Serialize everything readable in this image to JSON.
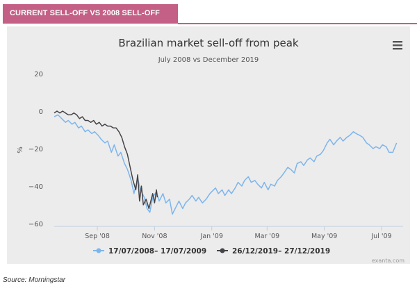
{
  "banner": {
    "title": "CURRENT SELL-OFF VS 2008 SELL-OFF",
    "color": "#c45f85"
  },
  "source": "Source: Morningstar",
  "menu_icon": "hamburger-menu-icon",
  "chart_data": {
    "type": "line",
    "title": "Brazilian market sell-off from peak",
    "subtitle": "July 2008 vs December 2019",
    "ylabel": "%",
    "xlabel": "",
    "ylim": [
      -60,
      20
    ],
    "yticks": [
      20,
      0,
      -20,
      -40,
      -60
    ],
    "xlim": [
      "2008-07-17",
      "2009-07-24"
    ],
    "xticks": [
      {
        "date": "2008-09-01",
        "label": "Sep '08"
      },
      {
        "date": "2008-11-01",
        "label": "Nov '08"
      },
      {
        "date": "2009-01-01",
        "label": "Jan '09"
      },
      {
        "date": "2009-03-01",
        "label": "Mar '09"
      },
      {
        "date": "2009-05-01",
        "label": "May '09"
      },
      {
        "date": "2009-07-01",
        "label": "Jul '09"
      }
    ],
    "grid": false,
    "legend_position": "bottom-center",
    "credit": "exanta.com",
    "series": [
      {
        "name": "17/07/2008– 17/07/2009",
        "color": "#7cb5ec",
        "points": [
          [
            "2008-07-17",
            -3
          ],
          [
            "2008-07-21",
            -2
          ],
          [
            "2008-07-25",
            -4
          ],
          [
            "2008-07-29",
            -6
          ],
          [
            "2008-08-01",
            -5
          ],
          [
            "2008-08-05",
            -7
          ],
          [
            "2008-08-08",
            -6
          ],
          [
            "2008-08-12",
            -9
          ],
          [
            "2008-08-15",
            -8
          ],
          [
            "2008-08-19",
            -11
          ],
          [
            "2008-08-22",
            -10
          ],
          [
            "2008-08-26",
            -12
          ],
          [
            "2008-08-29",
            -11
          ],
          [
            "2008-09-02",
            -13
          ],
          [
            "2008-09-05",
            -15
          ],
          [
            "2008-09-09",
            -17
          ],
          [
            "2008-09-12",
            -16
          ],
          [
            "2008-09-16",
            -22
          ],
          [
            "2008-09-19",
            -18
          ],
          [
            "2008-09-23",
            -24
          ],
          [
            "2008-09-26",
            -22
          ],
          [
            "2008-09-30",
            -28
          ],
          [
            "2008-10-03",
            -31
          ],
          [
            "2008-10-07",
            -37
          ],
          [
            "2008-10-10",
            -44
          ],
          [
            "2008-10-14",
            -36
          ],
          [
            "2008-10-17",
            -42
          ],
          [
            "2008-10-21",
            -46
          ],
          [
            "2008-10-24",
            -52
          ],
          [
            "2008-10-27",
            -54
          ],
          [
            "2008-10-30",
            -46
          ],
          [
            "2008-11-03",
            -43
          ],
          [
            "2008-11-06",
            -48
          ],
          [
            "2008-11-10",
            -44
          ],
          [
            "2008-11-13",
            -49
          ],
          [
            "2008-11-17",
            -47
          ],
          [
            "2008-11-20",
            -55
          ],
          [
            "2008-11-24",
            -51
          ],
          [
            "2008-11-27",
            -48
          ],
          [
            "2008-12-01",
            -52
          ],
          [
            "2008-12-04",
            -49
          ],
          [
            "2008-12-08",
            -47
          ],
          [
            "2008-12-11",
            -45
          ],
          [
            "2008-12-15",
            -48
          ],
          [
            "2008-12-18",
            -46
          ],
          [
            "2008-12-22",
            -49
          ],
          [
            "2008-12-26",
            -47
          ],
          [
            "2008-12-30",
            -44
          ],
          [
            "2009-01-05",
            -41
          ],
          [
            "2009-01-08",
            -44
          ],
          [
            "2009-01-12",
            -42
          ],
          [
            "2009-01-15",
            -45
          ],
          [
            "2009-01-19",
            -42
          ],
          [
            "2009-01-22",
            -44
          ],
          [
            "2009-01-26",
            -41
          ],
          [
            "2009-01-29",
            -38
          ],
          [
            "2009-02-02",
            -40
          ],
          [
            "2009-02-05",
            -37
          ],
          [
            "2009-02-09",
            -35
          ],
          [
            "2009-02-12",
            -38
          ],
          [
            "2009-02-16",
            -37
          ],
          [
            "2009-02-19",
            -39
          ],
          [
            "2009-02-23",
            -41
          ],
          [
            "2009-02-26",
            -38
          ],
          [
            "2009-03-02",
            -42
          ],
          [
            "2009-03-05",
            -39
          ],
          [
            "2009-03-09",
            -40
          ],
          [
            "2009-03-12",
            -37
          ],
          [
            "2009-03-16",
            -35
          ],
          [
            "2009-03-19",
            -33
          ],
          [
            "2009-03-23",
            -30
          ],
          [
            "2009-03-26",
            -31
          ],
          [
            "2009-03-30",
            -33
          ],
          [
            "2009-04-02",
            -28
          ],
          [
            "2009-04-06",
            -27
          ],
          [
            "2009-04-09",
            -29
          ],
          [
            "2009-04-13",
            -26
          ],
          [
            "2009-04-16",
            -25
          ],
          [
            "2009-04-20",
            -27
          ],
          [
            "2009-04-23",
            -24
          ],
          [
            "2009-04-27",
            -23
          ],
          [
            "2009-04-30",
            -21
          ],
          [
            "2009-05-04",
            -17
          ],
          [
            "2009-05-07",
            -15
          ],
          [
            "2009-05-11",
            -18
          ],
          [
            "2009-05-14",
            -16
          ],
          [
            "2009-05-18",
            -14
          ],
          [
            "2009-05-21",
            -16
          ],
          [
            "2009-05-25",
            -14
          ],
          [
            "2009-05-28",
            -13
          ],
          [
            "2009-06-01",
            -11
          ],
          [
            "2009-06-04",
            -12
          ],
          [
            "2009-06-08",
            -13
          ],
          [
            "2009-06-11",
            -14
          ],
          [
            "2009-06-15",
            -17
          ],
          [
            "2009-06-18",
            -18
          ],
          [
            "2009-06-22",
            -20
          ],
          [
            "2009-06-25",
            -19
          ],
          [
            "2009-06-29",
            -20
          ],
          [
            "2009-07-02",
            -18
          ],
          [
            "2009-07-06",
            -19
          ],
          [
            "2009-07-09",
            -22
          ],
          [
            "2009-07-13",
            -22
          ],
          [
            "2009-07-17",
            -17
          ]
        ]
      },
      {
        "name": "26/12/2019– 27/12/2019",
        "color": "#434348",
        "points": [
          [
            "2008-07-17",
            -1
          ],
          [
            "2008-07-20",
            0
          ],
          [
            "2008-07-23",
            -1
          ],
          [
            "2008-07-26",
            0
          ],
          [
            "2008-07-29",
            -1
          ],
          [
            "2008-08-01",
            -2
          ],
          [
            "2008-08-04",
            -2
          ],
          [
            "2008-08-07",
            -1
          ],
          [
            "2008-08-10",
            -2
          ],
          [
            "2008-08-13",
            -4
          ],
          [
            "2008-08-16",
            -3
          ],
          [
            "2008-08-19",
            -5
          ],
          [
            "2008-08-22",
            -5
          ],
          [
            "2008-08-25",
            -6
          ],
          [
            "2008-08-28",
            -5
          ],
          [
            "2008-08-31",
            -7
          ],
          [
            "2008-09-03",
            -6
          ],
          [
            "2008-09-06",
            -8
          ],
          [
            "2008-09-09",
            -7
          ],
          [
            "2008-09-12",
            -8
          ],
          [
            "2008-09-15",
            -8
          ],
          [
            "2008-09-18",
            -9
          ],
          [
            "2008-09-21",
            -9
          ],
          [
            "2008-09-24",
            -11
          ],
          [
            "2008-09-27",
            -14
          ],
          [
            "2008-09-30",
            -19
          ],
          [
            "2008-10-03",
            -23
          ],
          [
            "2008-10-06",
            -30
          ],
          [
            "2008-10-09",
            -37
          ],
          [
            "2008-10-12",
            -42
          ],
          [
            "2008-10-14",
            -34
          ],
          [
            "2008-10-16",
            -48
          ],
          [
            "2008-10-18",
            -40
          ],
          [
            "2008-10-20",
            -50
          ],
          [
            "2008-10-23",
            -47
          ],
          [
            "2008-10-26",
            -52
          ],
          [
            "2008-10-28",
            -48
          ],
          [
            "2008-10-30",
            -44
          ],
          [
            "2008-11-01",
            -49
          ],
          [
            "2008-11-03",
            -42
          ],
          [
            "2008-11-04",
            -46
          ]
        ]
      }
    ]
  }
}
